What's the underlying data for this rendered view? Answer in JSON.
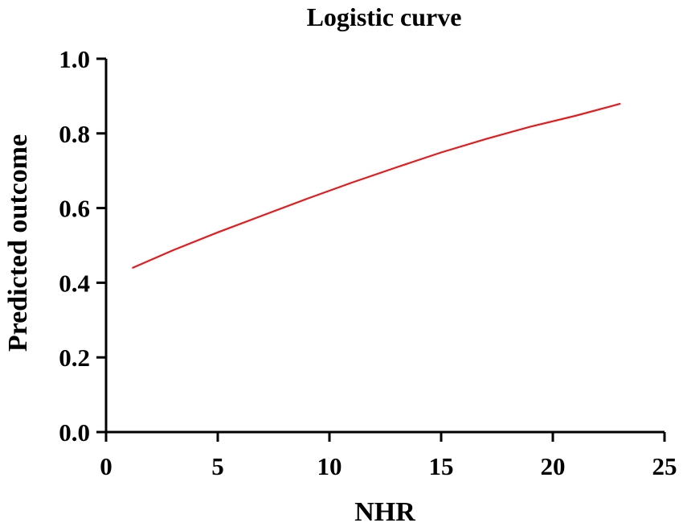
{
  "chart_data": {
    "type": "line",
    "title": "Logistic curve",
    "xlabel": "NHR",
    "ylabel": "Predicted outcome",
    "xlim": [
      0,
      25
    ],
    "ylim": [
      0,
      1.0
    ],
    "xticks": [
      0,
      5,
      10,
      15,
      20,
      25
    ],
    "xtick_labels": [
      "0",
      "5",
      "10",
      "15",
      "20",
      "25"
    ],
    "yticks": [
      0.0,
      0.2,
      0.4,
      0.6,
      0.8,
      1.0
    ],
    "ytick_labels": [
      "0.0",
      "0.2",
      "0.4",
      "0.6",
      "0.8",
      "1.0"
    ],
    "grid": false,
    "legend": false,
    "series": [
      {
        "color": "#e8191c",
        "x": [
          1.2,
          3,
          5,
          7,
          9,
          11,
          13,
          15,
          17,
          19,
          21,
          23
        ],
        "y": [
          0.44,
          0.487,
          0.535,
          0.58,
          0.625,
          0.668,
          0.709,
          0.749,
          0.785,
          0.818,
          0.847,
          0.879
        ]
      }
    ]
  }
}
